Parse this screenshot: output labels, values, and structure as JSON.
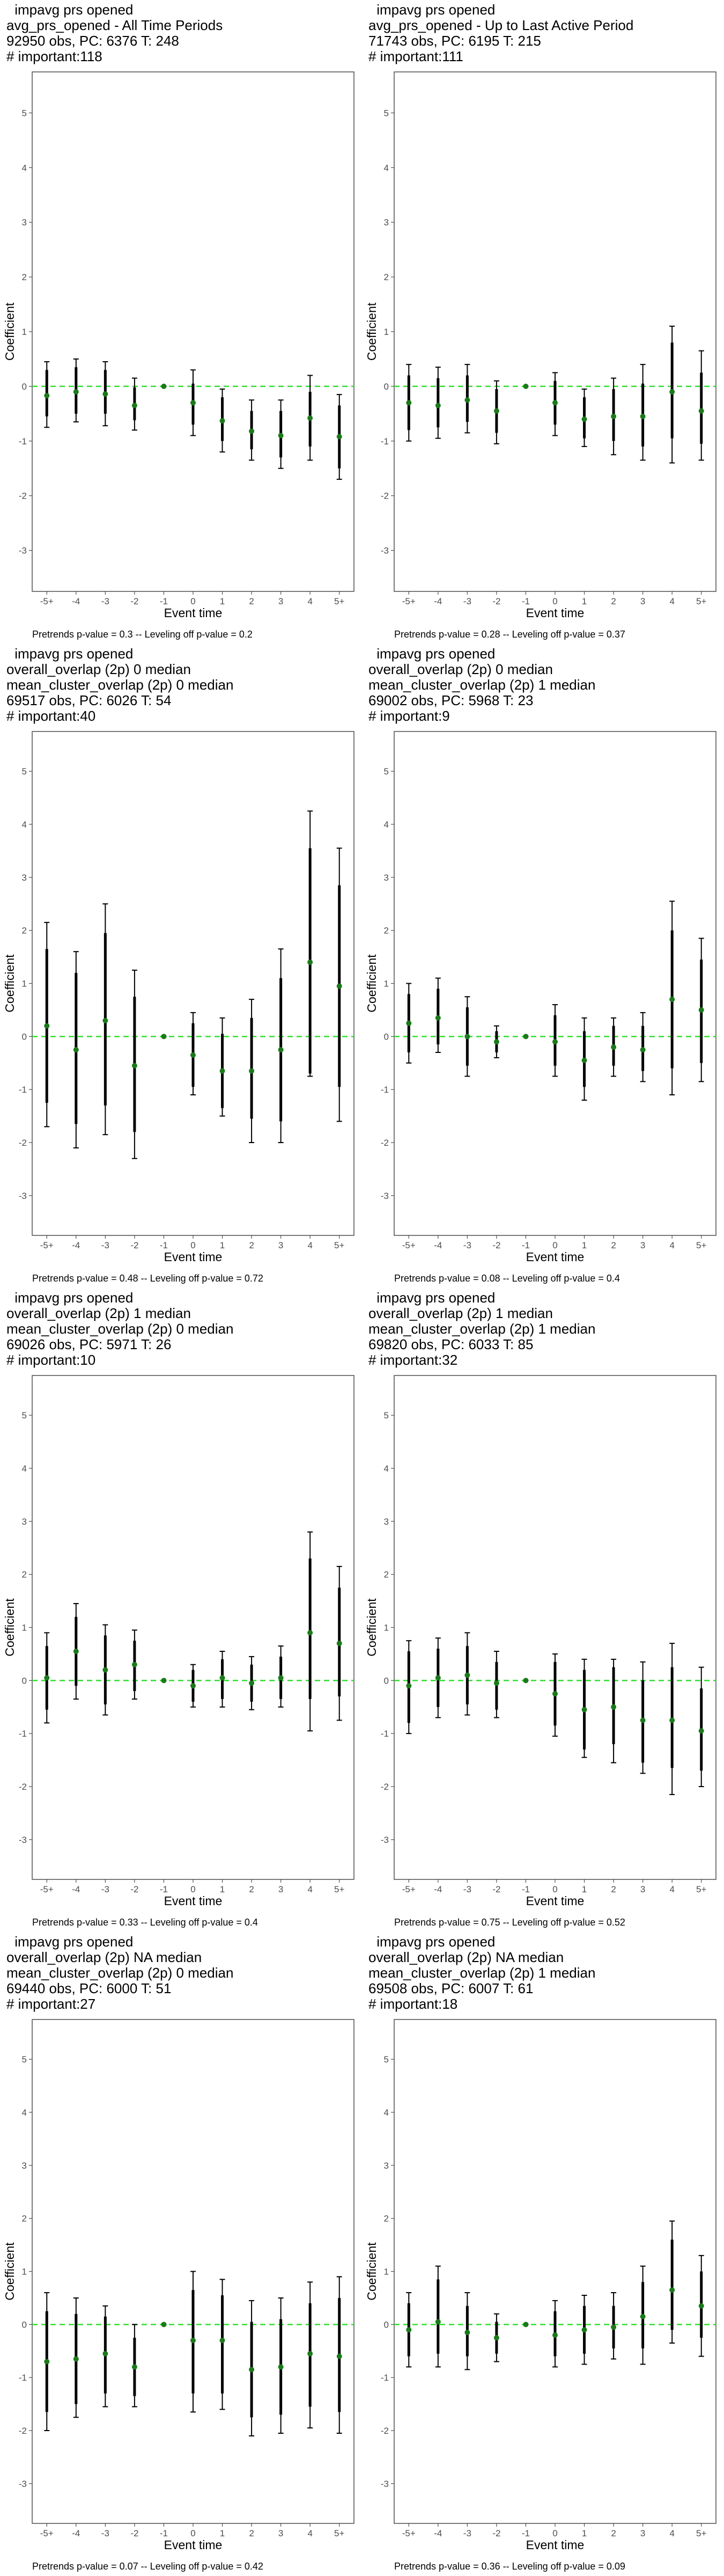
{
  "chart_data": [
    {
      "type": "errorbar",
      "title_lines": [
        " impavg prs opened",
        "avg_prs_opened - All Time Periods",
        "92950 obs, PC: 6376 T: 248",
        "# important:118"
      ],
      "footer": "Pretrends p-value = 0.3 -- Leveling off p-value = 0.2",
      "xlabel": "Event time",
      "ylabel": "Coefficient",
      "categories": [
        "-5+",
        "-4",
        "-3",
        "-2",
        "-1",
        "0",
        "1",
        "2",
        "3",
        "4",
        "5+"
      ],
      "ylim": [
        -3.75,
        5.75
      ],
      "yticks": [
        -3,
        -2,
        -1,
        0,
        1,
        2,
        3,
        4,
        5
      ],
      "estimate": [
        -0.17,
        -0.1,
        -0.14,
        -0.35,
        0.0,
        -0.3,
        -0.63,
        -0.82,
        -0.9,
        -0.58,
        -0.92
      ],
      "ci_outer_low": [
        -0.75,
        -0.65,
        -0.72,
        -0.8,
        0.0,
        -0.9,
        -1.2,
        -1.35,
        -1.5,
        -1.35,
        -1.7
      ],
      "ci_outer_high": [
        0.45,
        0.5,
        0.45,
        0.15,
        0.0,
        0.3,
        -0.05,
        -0.25,
        -0.25,
        0.2,
        -0.15
      ],
      "ci_inner_low": [
        -0.55,
        -0.5,
        -0.5,
        -0.62,
        0.0,
        -0.7,
        -1.0,
        -1.15,
        -1.3,
        -1.1,
        -1.5
      ],
      "ci_inner_high": [
        0.3,
        0.35,
        0.3,
        -0.02,
        0.0,
        0.05,
        -0.2,
        -0.45,
        -0.45,
        -0.1,
        -0.35
      ]
    },
    {
      "type": "errorbar",
      "title_lines": [
        " impavg prs opened",
        "avg_prs_opened - Up to Last Active Period",
        "71743 obs, PC: 6195 T: 215",
        "# important:111"
      ],
      "footer": "Pretrends p-value = 0.28 -- Leveling off p-value = 0.37",
      "xlabel": "Event time",
      "ylabel": "Coefficient",
      "categories": [
        "-5+",
        "-4",
        "-3",
        "-2",
        "-1",
        "0",
        "1",
        "2",
        "3",
        "4",
        "5+"
      ],
      "ylim": [
        -3.75,
        5.75
      ],
      "yticks": [
        -3,
        -2,
        -1,
        0,
        1,
        2,
        3,
        4,
        5
      ],
      "estimate": [
        -0.3,
        -0.35,
        -0.25,
        -0.45,
        0.0,
        -0.3,
        -0.6,
        -0.55,
        -0.55,
        -0.1,
        -0.45
      ],
      "ci_outer_low": [
        -1.0,
        -0.95,
        -0.85,
        -1.05,
        0.0,
        -0.9,
        -1.1,
        -1.25,
        -1.35,
        -1.4,
        -1.35
      ],
      "ci_outer_high": [
        0.4,
        0.35,
        0.4,
        0.1,
        0.0,
        0.25,
        -0.05,
        0.15,
        0.4,
        1.1,
        0.65
      ],
      "ci_inner_low": [
        -0.8,
        -0.75,
        -0.65,
        -0.85,
        0.0,
        -0.7,
        -0.95,
        -1.0,
        -1.1,
        -0.95,
        -1.05
      ],
      "ci_inner_high": [
        0.2,
        0.15,
        0.2,
        -0.05,
        0.0,
        0.1,
        -0.2,
        -0.05,
        0.05,
        0.8,
        0.25
      ]
    },
    {
      "type": "errorbar",
      "title_lines": [
        " impavg prs opened",
        "overall_overlap (2p) 0 median",
        "mean_cluster_overlap (2p) 0 median",
        "69517 obs, PC: 6026 T: 54",
        "# important:40"
      ],
      "footer": "Pretrends p-value = 0.48 -- Leveling off p-value = 0.72",
      "xlabel": "Event time",
      "ylabel": "Coefficient",
      "categories": [
        "-5+",
        "-4",
        "-3",
        "-2",
        "-1",
        "0",
        "1",
        "2",
        "3",
        "4",
        "5+"
      ],
      "ylim": [
        -3.75,
        5.75
      ],
      "yticks": [
        -3,
        -2,
        -1,
        0,
        1,
        2,
        3,
        4,
        5
      ],
      "estimate": [
        0.2,
        -0.25,
        0.3,
        -0.55,
        0.0,
        -0.35,
        -0.65,
        -0.65,
        -0.25,
        1.4,
        0.95
      ],
      "ci_outer_low": [
        -1.7,
        -2.1,
        -1.85,
        -2.3,
        0.0,
        -1.1,
        -1.5,
        -2.0,
        -2.0,
        -0.75,
        -1.6
      ],
      "ci_outer_high": [
        2.15,
        1.6,
        2.5,
        1.25,
        0.0,
        0.45,
        0.35,
        0.7,
        1.65,
        4.25,
        3.55
      ],
      "ci_inner_low": [
        -1.25,
        -1.65,
        -1.3,
        -1.8,
        0.0,
        -0.95,
        -1.35,
        -1.55,
        -1.6,
        -0.7,
        -0.95
      ],
      "ci_inner_high": [
        1.65,
        1.2,
        1.95,
        0.75,
        0.0,
        0.25,
        0.05,
        0.35,
        1.1,
        3.55,
        2.85
      ]
    },
    {
      "type": "errorbar",
      "title_lines": [
        " impavg prs opened",
        "overall_overlap (2p) 0 median",
        "mean_cluster_overlap (2p) 1 median",
        "69002 obs, PC: 5968 T: 23",
        "# important:9"
      ],
      "footer": "Pretrends p-value = 0.08 -- Leveling off p-value = 0.4",
      "xlabel": "Event time",
      "ylabel": "Coefficient",
      "categories": [
        "-5+",
        "-4",
        "-3",
        "-2",
        "-1",
        "0",
        "1",
        "2",
        "3",
        "4",
        "5+"
      ],
      "ylim": [
        -3.75,
        5.75
      ],
      "yticks": [
        -3,
        -2,
        -1,
        0,
        1,
        2,
        3,
        4,
        5
      ],
      "estimate": [
        0.25,
        0.35,
        0.0,
        -0.1,
        0.0,
        -0.1,
        -0.45,
        -0.2,
        -0.25,
        0.7,
        0.5
      ],
      "ci_outer_low": [
        -0.5,
        -0.3,
        -0.75,
        -0.4,
        0.0,
        -0.75,
        -1.2,
        -0.75,
        -0.85,
        -1.1,
        -0.85
      ],
      "ci_outer_high": [
        1.0,
        1.1,
        0.75,
        0.2,
        0.0,
        0.6,
        0.35,
        0.35,
        0.45,
        2.55,
        1.85
      ],
      "ci_inner_low": [
        -0.3,
        -0.15,
        -0.55,
        -0.3,
        0.0,
        -0.55,
        -0.95,
        -0.55,
        -0.65,
        -0.6,
        -0.5
      ],
      "ci_inner_high": [
        0.8,
        0.9,
        0.55,
        0.1,
        0.0,
        0.4,
        0.1,
        0.2,
        0.2,
        2.0,
        1.45
      ]
    },
    {
      "type": "errorbar",
      "title_lines": [
        " impavg prs opened",
        "overall_overlap (2p) 1 median",
        "mean_cluster_overlap (2p) 0 median",
        "69026 obs, PC: 5971 T: 26",
        "# important:10"
      ],
      "footer": "Pretrends p-value = 0.33 -- Leveling off p-value = 0.4",
      "xlabel": "Event time",
      "ylabel": "Coefficient",
      "categories": [
        "-5+",
        "-4",
        "-3",
        "-2",
        "-1",
        "0",
        "1",
        "2",
        "3",
        "4",
        "5+"
      ],
      "ylim": [
        -3.75,
        5.75
      ],
      "yticks": [
        -3,
        -2,
        -1,
        0,
        1,
        2,
        3,
        4,
        5
      ],
      "estimate": [
        0.05,
        0.55,
        0.2,
        0.3,
        0.0,
        -0.1,
        0.05,
        -0.05,
        0.05,
        0.9,
        0.7
      ],
      "ci_outer_low": [
        -0.8,
        -0.35,
        -0.65,
        -0.35,
        0.0,
        -0.5,
        -0.5,
        -0.55,
        -0.5,
        -0.95,
        -0.75
      ],
      "ci_outer_high": [
        0.9,
        1.45,
        1.05,
        0.95,
        0.0,
        0.3,
        0.55,
        0.45,
        0.65,
        2.8,
        2.15
      ],
      "ci_inner_low": [
        -0.55,
        -0.1,
        -0.45,
        -0.2,
        0.0,
        -0.4,
        -0.35,
        -0.4,
        -0.35,
        -0.35,
        -0.3
      ],
      "ci_inner_high": [
        0.65,
        1.2,
        0.85,
        0.75,
        0.0,
        0.2,
        0.4,
        0.3,
        0.45,
        2.3,
        1.75
      ]
    },
    {
      "type": "errorbar",
      "title_lines": [
        " impavg prs opened",
        "overall_overlap (2p) 1 median",
        "mean_cluster_overlap (2p) 1 median",
        "69820 obs, PC: 6033 T: 85",
        "# important:32"
      ],
      "footer": "Pretrends p-value = 0.75 -- Leveling off p-value = 0.52",
      "xlabel": "Event time",
      "ylabel": "Coefficient",
      "categories": [
        "-5+",
        "-4",
        "-3",
        "-2",
        "-1",
        "0",
        "1",
        "2",
        "3",
        "4",
        "5+"
      ],
      "ylim": [
        -3.75,
        5.75
      ],
      "yticks": [
        -3,
        -2,
        -1,
        0,
        1,
        2,
        3,
        4,
        5
      ],
      "estimate": [
        -0.1,
        0.05,
        0.1,
        -0.05,
        0.0,
        -0.25,
        -0.55,
        -0.5,
        -0.75,
        -0.75,
        -0.95
      ],
      "ci_outer_low": [
        -1.0,
        -0.7,
        -0.65,
        -0.7,
        0.0,
        -1.05,
        -1.45,
        -1.55,
        -1.75,
        -2.15,
        -2.0
      ],
      "ci_outer_high": [
        0.75,
        0.8,
        0.9,
        0.55,
        0.0,
        0.5,
        0.4,
        0.4,
        0.35,
        0.7,
        0.25
      ],
      "ci_inner_low": [
        -0.8,
        -0.5,
        -0.45,
        -0.55,
        0.0,
        -0.85,
        -1.3,
        -1.2,
        -1.55,
        -1.65,
        -1.7
      ],
      "ci_inner_high": [
        0.55,
        0.6,
        0.65,
        0.35,
        0.0,
        0.35,
        0.2,
        0.25,
        0.0,
        0.25,
        -0.15
      ]
    },
    {
      "type": "errorbar",
      "title_lines": [
        " impavg prs opened",
        "overall_overlap (2p) NA median",
        "mean_cluster_overlap (2p) 0 median",
        "69440 obs, PC: 6000 T: 51",
        "# important:27"
      ],
      "footer": "Pretrends p-value = 0.07 -- Leveling off p-value = 0.42",
      "xlabel": "Event time",
      "ylabel": "Coefficient",
      "categories": [
        "-5+",
        "-4",
        "-3",
        "-2",
        "-1",
        "0",
        "1",
        "2",
        "3",
        "4",
        "5+"
      ],
      "ylim": [
        -3.75,
        5.75
      ],
      "yticks": [
        -3,
        -2,
        -1,
        0,
        1,
        2,
        3,
        4,
        5
      ],
      "estimate": [
        -0.7,
        -0.65,
        -0.55,
        -0.8,
        0.0,
        -0.3,
        -0.3,
        -0.85,
        -0.8,
        -0.55,
        -0.6
      ],
      "ci_outer_low": [
        -2.0,
        -1.75,
        -1.55,
        -1.55,
        0.0,
        -1.65,
        -1.6,
        -2.1,
        -2.05,
        -1.95,
        -2.05
      ],
      "ci_outer_high": [
        0.6,
        0.5,
        0.35,
        0.0,
        0.0,
        1.0,
        0.85,
        0.45,
        0.5,
        0.8,
        0.9
      ],
      "ci_inner_low": [
        -1.65,
        -1.5,
        -1.3,
        -1.35,
        0.0,
        -1.3,
        -1.3,
        -1.75,
        -1.7,
        -1.55,
        -1.65
      ],
      "ci_inner_high": [
        0.25,
        0.2,
        0.15,
        -0.25,
        0.0,
        0.65,
        0.55,
        0.05,
        0.1,
        0.4,
        0.5
      ]
    },
    {
      "type": "errorbar",
      "title_lines": [
        " impavg prs opened",
        "overall_overlap (2p) NA median",
        "mean_cluster_overlap (2p) 1 median",
        "69508 obs, PC: 6007 T: 61",
        "# important:18"
      ],
      "footer": "Pretrends p-value = 0.36 -- Leveling off p-value = 0.09",
      "xlabel": "Event time",
      "ylabel": "Coefficient",
      "categories": [
        "-5+",
        "-4",
        "-3",
        "-2",
        "-1",
        "0",
        "1",
        "2",
        "3",
        "4",
        "5+"
      ],
      "ylim": [
        -3.75,
        5.75
      ],
      "yticks": [
        -3,
        -2,
        -1,
        0,
        1,
        2,
        3,
        4,
        5
      ],
      "estimate": [
        -0.1,
        0.05,
        -0.15,
        -0.25,
        0.0,
        -0.2,
        -0.1,
        -0.05,
        0.15,
        0.65,
        0.35
      ],
      "ci_outer_low": [
        -0.8,
        -0.8,
        -0.85,
        -0.7,
        0.0,
        -0.8,
        -0.75,
        -0.65,
        -0.75,
        -0.35,
        -0.6
      ],
      "ci_outer_high": [
        0.6,
        1.1,
        0.6,
        0.2,
        0.0,
        0.45,
        0.55,
        0.6,
        1.1,
        1.95,
        1.3
      ],
      "ci_inner_low": [
        -0.6,
        -0.55,
        -0.6,
        -0.55,
        0.0,
        -0.6,
        -0.55,
        -0.45,
        -0.45,
        -0.1,
        -0.25
      ],
      "ci_inner_high": [
        0.4,
        0.85,
        0.35,
        0.05,
        0.0,
        0.25,
        0.35,
        0.35,
        0.8,
        1.6,
        1.0
      ]
    }
  ],
  "colors": {
    "point": "#1a7a1a",
    "zero_line": "#33dd33",
    "error_bar": "#000000",
    "panel_border": "#4d4d4d",
    "tick_text": "#4d4d4d"
  }
}
